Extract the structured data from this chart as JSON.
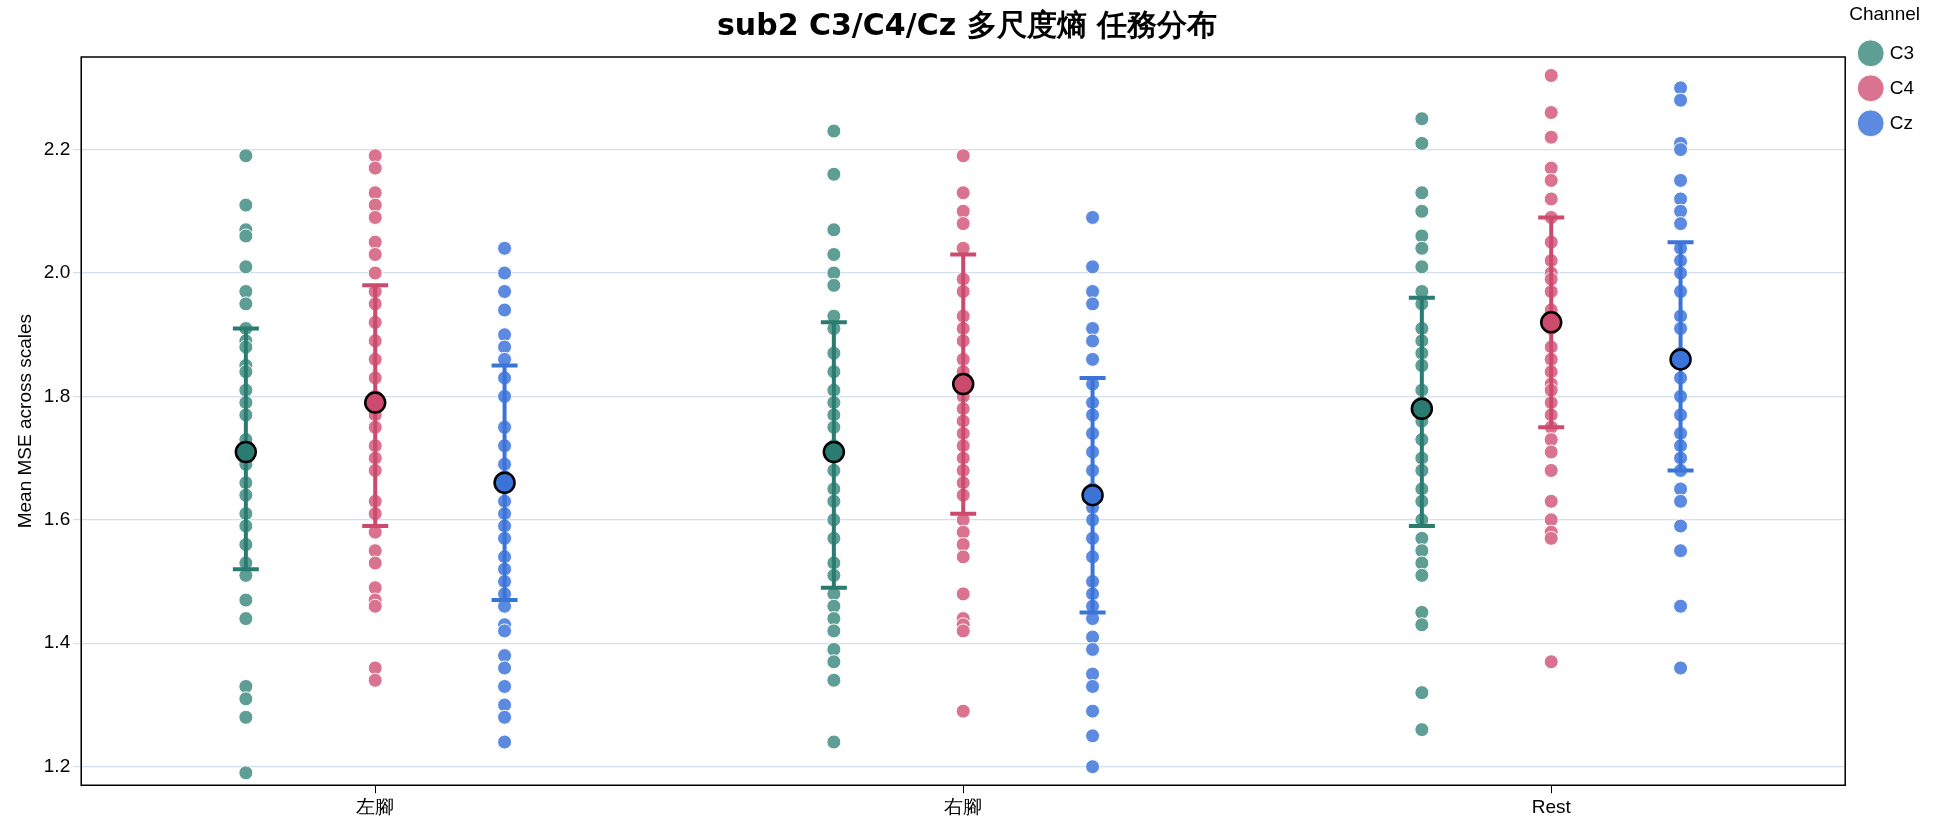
{
  "chart_data": {
    "type": "scatter",
    "title": "sub2 C3/C4/Cz 多尺度熵 任務分布",
    "ylabel": "Mean MSE across scales",
    "legend_title": "Channel",
    "legend": "right",
    "grid": "y",
    "marker": "circle",
    "categories": [
      "左腳",
      "右腳",
      "Rest"
    ],
    "ylim": [
      1.17,
      2.35
    ],
    "yticks": [
      1.2,
      1.4,
      1.6,
      1.8,
      {
        "value": 2,
        "label": "2.0"
      },
      2.2
    ],
    "series": [
      {
        "name": "C3",
        "color": "#5e9e95",
        "x": [
          "左腳",
          "左腳",
          "左腳",
          "左腳",
          "左腳",
          "左腳",
          "左腳",
          "左腳",
          "左腳",
          "左腳",
          "左腳",
          "左腳",
          "左腳",
          "左腳",
          "左腳",
          "左腳",
          "左腳",
          "左腳",
          "左腳",
          "左腳",
          "左腳",
          "左腳",
          "左腳",
          "左腳",
          "左腳",
          "左腳",
          "左腳",
          "左腳",
          "左腳",
          "左腳",
          "右腳",
          "右腳",
          "右腳",
          "右腳",
          "右腳",
          "右腳",
          "右腳",
          "右腳",
          "右腳",
          "右腳",
          "右腳",
          "右腳",
          "右腳",
          "右腳",
          "右腳",
          "右腳",
          "右腳",
          "右腳",
          "右腳",
          "右腳",
          "右腳",
          "右腳",
          "右腳",
          "右腳",
          "右腳",
          "右腳",
          "右腳",
          "右腳",
          "右腳",
          "右腳",
          "Rest",
          "Rest",
          "Rest",
          "Rest",
          "Rest",
          "Rest",
          "Rest",
          "Rest",
          "Rest",
          "Rest",
          "Rest",
          "Rest",
          "Rest",
          "Rest",
          "Rest",
          "Rest",
          "Rest",
          "Rest",
          "Rest",
          "Rest",
          "Rest",
          "Rest",
          "Rest",
          "Rest",
          "Rest",
          "Rest",
          "Rest",
          "Rest",
          "Rest",
          "Rest"
        ],
        "values": [
          2.19,
          2.11,
          2.07,
          2.06,
          2.01,
          1.97,
          1.95,
          1.91,
          1.89,
          1.88,
          1.85,
          1.84,
          1.81,
          1.79,
          1.77,
          1.73,
          1.69,
          1.66,
          1.64,
          1.61,
          1.59,
          1.56,
          1.53,
          1.51,
          1.47,
          1.44,
          1.33,
          1.31,
          1.28,
          1.19,
          2.23,
          2.16,
          2.07,
          2.03,
          2.0,
          1.98,
          1.93,
          1.91,
          1.87,
          1.84,
          1.81,
          1.79,
          1.77,
          1.75,
          1.72,
          1.68,
          1.65,
          1.63,
          1.6,
          1.57,
          1.53,
          1.51,
          1.48,
          1.46,
          1.44,
          1.42,
          1.39,
          1.37,
          1.34,
          1.24,
          2.25,
          2.21,
          2.13,
          2.1,
          2.06,
          2.04,
          2.01,
          1.97,
          1.95,
          1.91,
          1.89,
          1.87,
          1.85,
          1.81,
          1.79,
          1.76,
          1.73,
          1.7,
          1.68,
          1.65,
          1.63,
          1.6,
          1.57,
          1.55,
          1.53,
          1.51,
          1.45,
          1.43,
          1.32,
          1.26
        ]
      },
      {
        "name": "C4",
        "color": "#d9738f",
        "x": [
          "左腳",
          "左腳",
          "左腳",
          "左腳",
          "左腳",
          "左腳",
          "左腳",
          "左腳",
          "左腳",
          "左腳",
          "左腳",
          "左腳",
          "左腳",
          "左腳",
          "左腳",
          "左腳",
          "左腳",
          "左腳",
          "左腳",
          "左腳",
          "左腳",
          "左腳",
          "左腳",
          "左腳",
          "左腳",
          "左腳",
          "左腳",
          "左腳",
          "左腳",
          "左腳",
          "右腳",
          "右腳",
          "右腳",
          "右腳",
          "右腳",
          "右腳",
          "右腳",
          "右腳",
          "右腳",
          "右腳",
          "右腳",
          "右腳",
          "右腳",
          "右腳",
          "右腳",
          "右腳",
          "右腳",
          "右腳",
          "右腳",
          "右腳",
          "右腳",
          "右腳",
          "右腳",
          "右腳",
          "右腳",
          "右腳",
          "右腳",
          "右腳",
          "右腳",
          "右腳",
          "Rest",
          "Rest",
          "Rest",
          "Rest",
          "Rest",
          "Rest",
          "Rest",
          "Rest",
          "Rest",
          "Rest",
          "Rest",
          "Rest",
          "Rest",
          "Rest",
          "Rest",
          "Rest",
          "Rest",
          "Rest",
          "Rest",
          "Rest",
          "Rest",
          "Rest",
          "Rest",
          "Rest",
          "Rest",
          "Rest",
          "Rest",
          "Rest",
          "Rest",
          "Rest"
        ],
        "values": [
          2.19,
          2.17,
          2.13,
          2.11,
          2.09,
          2.05,
          2.03,
          2.0,
          1.97,
          1.95,
          1.92,
          1.89,
          1.86,
          1.83,
          1.8,
          1.77,
          1.75,
          1.72,
          1.7,
          1.68,
          1.63,
          1.61,
          1.58,
          1.55,
          1.53,
          1.49,
          1.47,
          1.46,
          1.36,
          1.34,
          2.19,
          2.13,
          2.1,
          2.08,
          2.04,
          1.99,
          1.97,
          1.93,
          1.91,
          1.89,
          1.86,
          1.84,
          1.8,
          1.78,
          1.76,
          1.74,
          1.72,
          1.7,
          1.68,
          1.66,
          1.64,
          1.6,
          1.58,
          1.56,
          1.54,
          1.48,
          1.44,
          1.43,
          1.42,
          1.29,
          2.32,
          2.26,
          2.22,
          2.17,
          2.15,
          2.12,
          2.09,
          2.05,
          2.02,
          2.0,
          1.97,
          1.94,
          1.91,
          1.88,
          1.86,
          1.84,
          1.82,
          1.79,
          1.77,
          1.75,
          1.73,
          1.71,
          1.68,
          1.63,
          1.6,
          1.58,
          1.57,
          1.37,
          1.99,
          1.81
        ]
      },
      {
        "name": "Cz",
        "color": "#5b8ae0",
        "x": [
          "左腳",
          "左腳",
          "左腳",
          "左腳",
          "左腳",
          "左腳",
          "左腳",
          "左腳",
          "左腳",
          "左腳",
          "左腳",
          "左腳",
          "左腳",
          "左腳",
          "左腳",
          "左腳",
          "左腳",
          "左腳",
          "左腳",
          "左腳",
          "左腳",
          "左腳",
          "左腳",
          "左腳",
          "左腳",
          "左腳",
          "左腳",
          "左腳",
          "左腳",
          "左腳",
          "右腳",
          "右腳",
          "右腳",
          "右腳",
          "右腳",
          "右腳",
          "右腳",
          "右腳",
          "右腳",
          "右腳",
          "右腳",
          "右腳",
          "右腳",
          "右腳",
          "右腳",
          "右腳",
          "右腳",
          "右腳",
          "右腳",
          "右腳",
          "右腳",
          "右腳",
          "右腳",
          "右腳",
          "右腳",
          "右腳",
          "右腳",
          "右腳",
          "右腳",
          "Rest",
          "Rest",
          "Rest",
          "Rest",
          "Rest",
          "Rest",
          "Rest",
          "Rest",
          "Rest",
          "Rest",
          "Rest",
          "Rest",
          "Rest",
          "Rest",
          "Rest",
          "Rest",
          "Rest",
          "Rest",
          "Rest",
          "Rest",
          "Rest",
          "Rest",
          "Rest",
          "Rest",
          "Rest",
          "Rest",
          "Rest",
          "Rest"
        ],
        "values": [
          2.04,
          2.0,
          1.97,
          1.94,
          1.9,
          1.88,
          1.86,
          1.83,
          1.8,
          1.75,
          1.72,
          1.69,
          1.67,
          1.63,
          1.61,
          1.59,
          1.57,
          1.54,
          1.52,
          1.5,
          1.48,
          1.46,
          1.43,
          1.42,
          1.38,
          1.36,
          1.33,
          1.3,
          1.28,
          1.24,
          2.09,
          2.01,
          1.97,
          1.95,
          1.91,
          1.89,
          1.86,
          1.82,
          1.79,
          1.77,
          1.74,
          1.71,
          1.68,
          1.65,
          1.62,
          1.6,
          1.57,
          1.54,
          1.5,
          1.48,
          1.46,
          1.44,
          1.41,
          1.39,
          1.35,
          1.33,
          1.29,
          1.25,
          1.2,
          2.3,
          2.28,
          2.21,
          2.2,
          2.15,
          2.12,
          2.1,
          2.08,
          2.04,
          2.02,
          2.0,
          1.97,
          1.93,
          1.91,
          1.87,
          1.83,
          1.8,
          1.77,
          1.74,
          1.72,
          1.7,
          1.68,
          1.65,
          1.63,
          1.59,
          1.55,
          1.46,
          1.36
        ]
      },
      {
        "color": "#2a7b70",
        "values": [
          1.71,
          1.71,
          1.78
        ],
        "errors": [
          [
            1.52,
            1.91
          ],
          [
            1.49,
            1.92
          ],
          [
            1.59,
            1.96
          ]
        ]
      },
      {
        "color": "#cc4a6e",
        "values": [
          1.79,
          1.82,
          1.92
        ],
        "errors": [
          [
            1.59,
            1.98
          ],
          [
            1.61,
            2.03
          ],
          [
            1.75,
            2.09
          ]
        ]
      },
      {
        "color": "#3a74d8",
        "values": [
          1.66,
          1.64,
          1.86
        ],
        "errors": [
          [
            1.47,
            1.85
          ],
          [
            1.45,
            1.83
          ],
          [
            1.68,
            2.05
          ]
        ]
      }
    ]
  }
}
